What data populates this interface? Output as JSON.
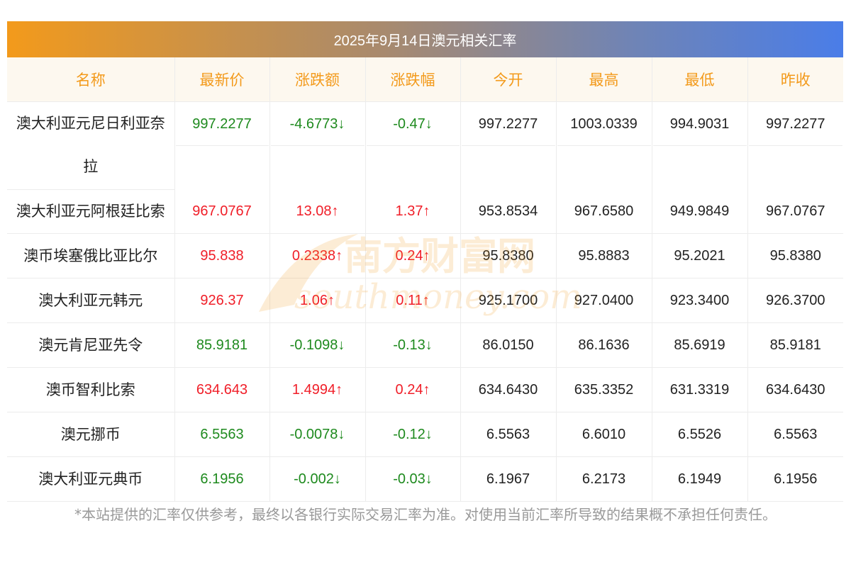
{
  "title": "2025年9月14日澳元相关汇率",
  "headers": [
    "名称",
    "最新价",
    "涨跌额",
    "涨跌幅",
    "今开",
    "最高",
    "最低",
    "昨收"
  ],
  "rows": [
    {
      "name": "澳大利亚元尼日利亚奈拉",
      "latest": "997.2277",
      "change": "-4.6773↓",
      "change_pct": "-0.47↓",
      "open": "997.2277",
      "high": "1003.0339",
      "low": "994.9031",
      "prev_close": "997.2277",
      "direction": "down"
    },
    {
      "name": "澳大利亚元阿根廷比索",
      "latest": "967.0767",
      "change": "13.08↑",
      "change_pct": "1.37↑",
      "open": "953.8534",
      "high": "967.6580",
      "low": "949.9849",
      "prev_close": "967.0767",
      "direction": "up"
    },
    {
      "name": "澳币埃塞俄比亚比尔",
      "latest": "95.838",
      "change": "0.2338↑",
      "change_pct": "0.24↑",
      "open": "95.8380",
      "high": "95.8883",
      "low": "95.2021",
      "prev_close": "95.8380",
      "direction": "up"
    },
    {
      "name": "澳大利亚元韩元",
      "latest": "926.37",
      "change": "1.06↑",
      "change_pct": "0.11↑",
      "open": "925.1700",
      "high": "927.0400",
      "low": "923.3400",
      "prev_close": "926.3700",
      "direction": "up"
    },
    {
      "name": "澳元肯尼亚先令",
      "latest": "85.9181",
      "change": "-0.1098↓",
      "change_pct": "-0.13↓",
      "open": "86.0150",
      "high": "86.1636",
      "low": "85.6919",
      "prev_close": "85.9181",
      "direction": "down"
    },
    {
      "name": "澳币智利比索",
      "latest": "634.643",
      "change": "1.4994↑",
      "change_pct": "0.24↑",
      "open": "634.6430",
      "high": "635.3352",
      "low": "631.3319",
      "prev_close": "634.6430",
      "direction": "up"
    },
    {
      "name": "澳元挪币",
      "latest": "6.5563",
      "change": "-0.0078↓",
      "change_pct": "-0.12↓",
      "open": "6.5563",
      "high": "6.6010",
      "low": "6.5526",
      "prev_close": "6.5563",
      "direction": "down"
    },
    {
      "name": "澳大利亚元典币",
      "latest": "6.1956",
      "change": "-0.002↓",
      "change_pct": "-0.03↓",
      "open": "6.1967",
      "high": "6.2173",
      "low": "6.1949",
      "prev_close": "6.1956",
      "direction": "down"
    }
  ],
  "watermark": {
    "brand_cn": "南方财富网",
    "brand_en": "southmoney.com"
  },
  "disclaimer": "*本站提供的汇率仅供参考，最终以各银行实际交易汇率为准。对使用当前汇率所导致的结果概不承担任何责任。",
  "colors": {
    "up": "#f01e28",
    "down": "#1e8a1e",
    "header_text": "#f39a1b",
    "gradient_start": "#f39a1b",
    "gradient_end": "#4a7de8"
  }
}
